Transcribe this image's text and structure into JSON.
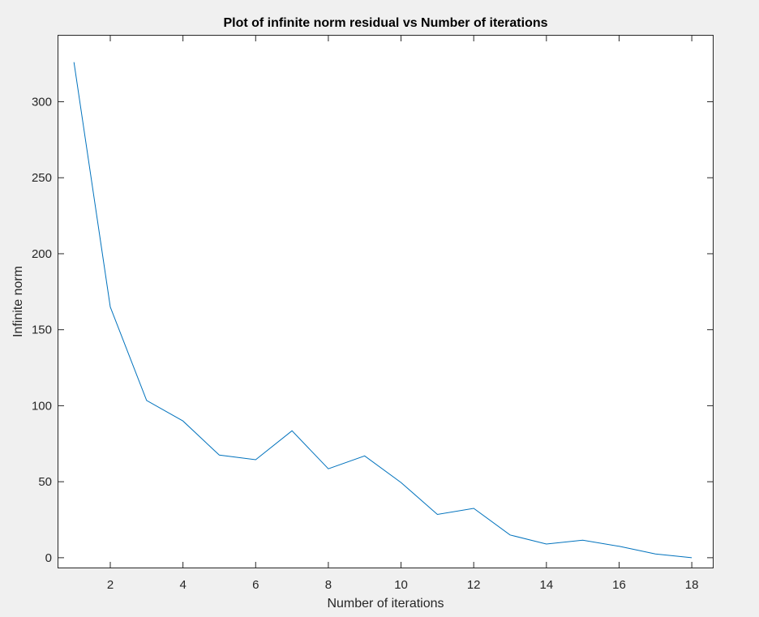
{
  "chart_data": {
    "type": "line",
    "title": "Plot of infinite norm residual vs Number of iterations",
    "xlabel": "Number of iterations",
    "ylabel": "Infinite norm",
    "xlim": [
      0.55,
      18.6
    ],
    "ylim": [
      -7,
      344
    ],
    "xticks": [
      2,
      4,
      6,
      8,
      10,
      12,
      14,
      16,
      18
    ],
    "yticks": [
      0,
      50,
      100,
      150,
      200,
      250,
      300
    ],
    "grid": false,
    "legend": "none",
    "line_color": "#0072bd",
    "x": [
      1,
      2,
      3,
      4,
      5,
      6,
      7,
      8,
      9,
      10,
      11,
      12,
      13,
      14,
      15,
      16,
      17,
      18
    ],
    "series": [
      {
        "values": [
          326,
          165,
          103.5,
          90,
          67.5,
          64.5,
          83.5,
          58.5,
          67,
          49.5,
          28.5,
          32.5,
          15,
          9,
          11.5,
          7.5,
          2.5,
          0
        ]
      }
    ]
  }
}
